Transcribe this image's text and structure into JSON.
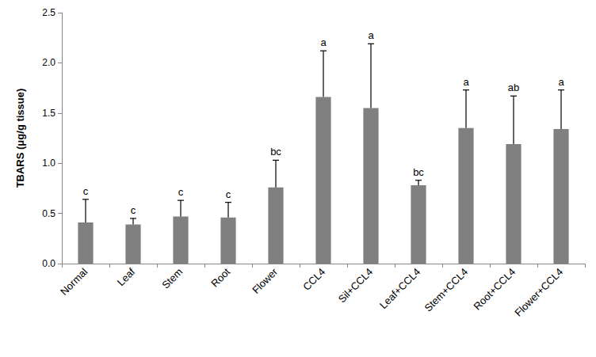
{
  "chart_data": {
    "type": "bar",
    "y_label": "TBARS (μg/g tissue)",
    "categories": [
      "Normal",
      "Leaf",
      "Stem",
      "Root",
      "Flower",
      "CCL4",
      "Sil+CCL4",
      "Leaf+CCL4",
      "Stem+CCL4",
      "Root+CCL4",
      "Flower+CCL4"
    ],
    "values": [
      0.41,
      0.39,
      0.47,
      0.46,
      0.76,
      1.66,
      1.55,
      0.78,
      1.35,
      1.19,
      1.34
    ],
    "errors": [
      0.23,
      0.06,
      0.16,
      0.15,
      0.27,
      0.46,
      0.64,
      0.05,
      0.38,
      0.48,
      0.39
    ],
    "annotations": [
      "c",
      "c",
      "c",
      "c",
      "bc",
      "a",
      "a",
      "bc",
      "a",
      "ab",
      "a"
    ],
    "color": "#808080",
    "ylim": [
      0,
      2.5
    ],
    "yticks": [
      {
        "value": 0,
        "label": "0.0"
      },
      0.5,
      {
        "value": 1,
        "label": "1.0"
      },
      1.5,
      {
        "value": 2,
        "label": "2.0"
      },
      2.5
    ],
    "grid": false
  }
}
